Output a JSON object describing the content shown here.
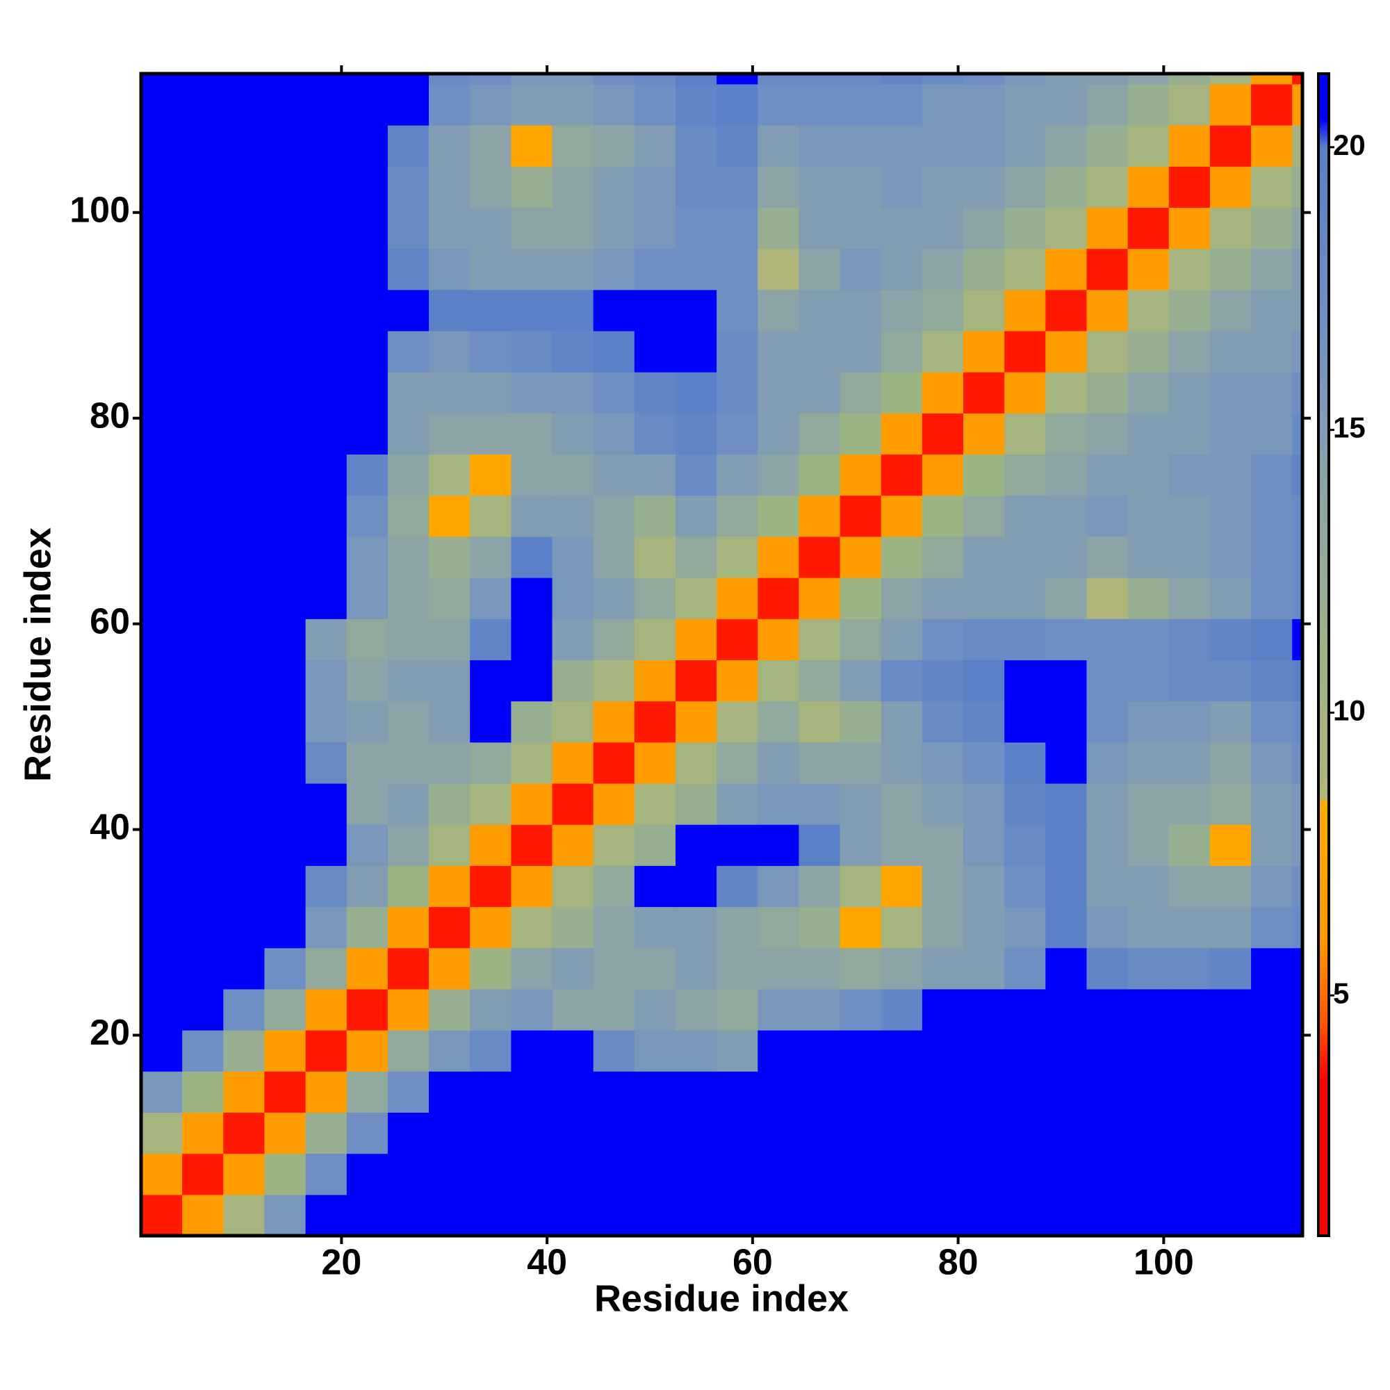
{
  "chart_data": {
    "type": "heatmap",
    "xlabel": "Residue index",
    "ylabel": "Residue index",
    "xlim": [
      0.5,
      113.5
    ],
    "ylim": [
      0.5,
      113.5
    ],
    "xticks": [
      20,
      40,
      60,
      80,
      100
    ],
    "yticks": [
      20,
      40,
      60,
      80,
      100
    ],
    "clim": [
      0.75,
      21.3
    ],
    "cticks": [
      5,
      10,
      15,
      20
    ],
    "colorscale": [
      {
        "value": 0.75,
        "color": "#ff0000"
      },
      {
        "value": 3.5,
        "color": "#ff0000"
      },
      {
        "value": 4.5,
        "color": "#ff5500"
      },
      {
        "value": 6,
        "color": "#ff9900"
      },
      {
        "value": 8.4,
        "color": "#ffaa00"
      },
      {
        "value": 8.5,
        "color": "#b4b478"
      },
      {
        "value": 11,
        "color": "#9cb484"
      },
      {
        "value": 14,
        "color": "#8ca4a8"
      },
      {
        "value": 17,
        "color": "#6f8fc4"
      },
      {
        "value": 20,
        "color": "#5a80c8"
      },
      {
        "value": 20.5,
        "color": "#0000ff"
      },
      {
        "value": 21.3,
        "color": "#0000ff"
      }
    ],
    "x": [
      2.5,
      6.5,
      10.5,
      14.5,
      18.5,
      22.5,
      26.5,
      30.5,
      34.5,
      38.5,
      42.5,
      46.5,
      50.5,
      54.5,
      58.5,
      62.5,
      66.5,
      70.5,
      74.5,
      78.5,
      82.5,
      86.5,
      90.5,
      94.5,
      98.5,
      102.5,
      106.5,
      110.5,
      114.5
    ],
    "y": [
      2.5,
      6.5,
      10.5,
      14.5,
      18.5,
      22.5,
      26.5,
      30.5,
      34.5,
      38.5,
      42.5,
      46.5,
      50.5,
      54.5,
      58.5,
      62.5,
      66.5,
      70.5,
      74.5,
      78.5,
      82.5,
      86.5,
      90.5,
      94.5,
      98.5,
      102.5,
      106.5,
      110.5,
      114.5
    ],
    "z": [
      [
        3.8,
        6.5,
        10,
        16,
        21,
        21,
        21,
        21,
        21,
        21,
        21,
        21,
        21,
        21,
        21,
        21,
        21,
        21,
        21,
        21,
        21,
        21,
        21,
        21,
        21,
        21,
        21,
        21,
        21
      ],
      [
        6.5,
        3.8,
        6.5,
        11,
        17,
        21,
        21,
        21,
        21,
        21,
        21,
        21,
        21,
        21,
        21,
        21,
        21,
        21,
        21,
        21,
        21,
        21,
        21,
        21,
        21,
        21,
        21,
        21,
        21
      ],
      [
        10,
        6.5,
        3.8,
        6.5,
        12,
        17,
        21,
        21,
        21,
        21,
        21,
        21,
        21,
        21,
        21,
        21,
        21,
        21,
        21,
        21,
        21,
        21,
        21,
        21,
        21,
        21,
        21,
        21,
        21
      ],
      [
        16,
        11,
        6.5,
        3.8,
        6.5,
        13,
        17,
        21,
        21,
        21,
        21,
        21,
        21,
        21,
        21,
        21,
        21,
        21,
        21,
        21,
        21,
        21,
        21,
        21,
        21,
        21,
        21,
        21,
        21
      ],
      [
        21,
        17,
        12,
        6.5,
        3.8,
        6.5,
        13,
        16,
        18,
        21,
        21,
        18,
        16,
        16,
        15,
        21,
        21,
        21,
        21,
        21,
        21,
        21,
        21,
        21,
        21,
        21,
        21,
        21,
        21
      ],
      [
        21,
        21,
        17,
        13,
        6.5,
        3.8,
        6.5,
        12,
        15,
        16,
        14,
        14,
        15,
        14,
        13,
        16,
        16,
        17,
        19,
        21,
        21,
        21,
        21,
        21,
        21,
        21,
        21,
        21,
        21
      ],
      [
        21,
        21,
        21,
        17,
        13,
        6.5,
        3.8,
        6.5,
        11,
        14,
        15,
        14,
        14,
        15,
        14,
        14,
        14,
        13,
        14,
        15,
        15,
        17,
        21,
        19,
        18,
        18,
        19,
        21,
        21
      ],
      [
        21,
        21,
        21,
        21,
        16,
        12,
        6.5,
        3.8,
        6.5,
        10,
        12,
        14,
        15,
        15,
        14,
        13,
        12,
        8,
        10,
        14,
        15,
        16,
        20,
        16,
        15,
        15,
        15,
        17,
        18
      ],
      [
        21,
        21,
        21,
        21,
        18,
        15,
        11,
        6.5,
        3.8,
        6.5,
        10,
        13,
        21,
        21,
        19,
        16,
        14,
        10,
        8,
        14,
        15,
        17,
        20,
        15,
        15,
        14,
        14,
        16,
        17
      ],
      [
        21,
        21,
        21,
        21,
        21,
        16,
        14,
        10,
        6.5,
        3.8,
        6.5,
        10,
        12,
        21,
        21,
        21,
        20,
        15,
        14,
        14,
        16,
        18,
        20,
        15,
        14,
        12,
        8,
        15,
        16
      ],
      [
        21,
        21,
        21,
        21,
        21,
        14,
        15,
        12,
        10,
        6.5,
        3.8,
        6.5,
        10,
        12,
        15,
        16,
        16,
        15,
        14,
        15,
        16,
        19,
        20,
        15,
        14,
        14,
        13,
        15,
        16
      ],
      [
        21,
        21,
        21,
        21,
        18,
        14,
        14,
        14,
        13,
        10,
        6.5,
        3.8,
        6.5,
        10,
        13,
        15,
        14,
        14,
        15,
        16,
        17,
        20,
        21,
        16,
        15,
        15,
        14,
        16,
        17
      ],
      [
        21,
        21,
        21,
        21,
        16,
        15,
        14,
        15,
        21,
        12,
        10,
        6.5,
        3.8,
        6.5,
        10,
        13,
        10,
        12,
        15,
        18,
        19,
        21,
        21,
        17,
        16,
        16,
        15,
        17,
        18
      ],
      [
        21,
        21,
        21,
        21,
        16,
        14,
        15,
        15,
        21,
        21,
        12,
        10,
        6.5,
        3.8,
        6.5,
        10,
        13,
        15,
        18,
        19,
        20,
        21,
        21,
        17,
        17,
        18,
        18,
        19,
        20
      ],
      [
        21,
        21,
        21,
        21,
        15,
        13,
        14,
        14,
        19,
        21,
        15,
        13,
        10,
        6.5,
        3.8,
        6.5,
        10,
        13,
        15,
        17,
        18,
        18,
        17,
        17,
        17,
        18,
        19,
        20,
        21
      ],
      [
        21,
        21,
        21,
        21,
        21,
        16,
        14,
        13,
        16,
        21,
        16,
        15,
        13,
        10,
        6.5,
        3.8,
        6.5,
        11,
        14,
        15,
        15,
        15,
        14,
        9,
        12,
        14,
        15,
        17,
        18
      ],
      [
        21,
        21,
        21,
        21,
        21,
        16,
        14,
        12,
        14,
        20,
        16,
        14,
        10,
        13,
        10,
        6.5,
        3.8,
        6.5,
        11,
        13,
        15,
        15,
        15,
        14,
        15,
        15,
        16,
        17,
        18
      ],
      [
        21,
        21,
        21,
        21,
        21,
        17,
        13,
        8,
        10,
        15,
        15,
        14,
        12,
        15,
        13,
        11,
        6.5,
        3.8,
        6.5,
        11,
        13,
        15,
        15,
        16,
        15,
        15,
        16,
        17,
        18
      ],
      [
        21,
        21,
        21,
        21,
        21,
        19,
        14,
        10,
        8,
        14,
        14,
        15,
        15,
        18,
        15,
        14,
        11,
        6.5,
        3.8,
        6.5,
        11,
        13,
        14,
        15,
        15,
        16,
        16,
        17,
        19
      ],
      [
        21,
        21,
        21,
        21,
        21,
        21,
        15,
        14,
        14,
        14,
        15,
        16,
        18,
        19,
        17,
        15,
        13,
        11,
        6.5,
        3.8,
        6.5,
        10,
        13,
        14,
        15,
        15,
        16,
        16,
        18
      ],
      [
        21,
        21,
        21,
        21,
        21,
        21,
        15,
        15,
        15,
        16,
        16,
        17,
        19,
        20,
        18,
        15,
        15,
        13,
        11,
        6.5,
        3.8,
        6.5,
        10,
        12,
        14,
        15,
        16,
        16,
        17
      ],
      [
        21,
        21,
        21,
        21,
        21,
        21,
        17,
        16,
        17,
        18,
        19,
        20,
        21,
        21,
        18,
        15,
        15,
        15,
        13,
        10,
        6.5,
        3.8,
        6.5,
        10,
        12,
        14,
        15,
        15,
        16
      ],
      [
        21,
        21,
        21,
        21,
        21,
        21,
        21,
        20,
        20,
        20,
        20,
        21,
        21,
        21,
        17,
        14,
        15,
        15,
        14,
        13,
        10,
        6.5,
        3.8,
        6.5,
        10,
        12,
        14,
        15,
        15
      ],
      [
        21,
        21,
        21,
        21,
        21,
        21,
        19,
        16,
        15,
        15,
        15,
        16,
        17,
        17,
        17,
        9,
        14,
        16,
        15,
        14,
        12,
        10,
        6.5,
        3.8,
        6.5,
        10,
        12,
        14,
        15
      ],
      [
        21,
        21,
        21,
        21,
        21,
        21,
        18,
        15,
        15,
        14,
        14,
        15,
        16,
        17,
        17,
        12,
        15,
        15,
        15,
        15,
        14,
        12,
        10,
        6.5,
        3.8,
        6.5,
        10,
        12,
        14
      ],
      [
        21,
        21,
        21,
        21,
        21,
        21,
        18,
        15,
        14,
        12,
        14,
        15,
        16,
        18,
        18,
        14,
        15,
        15,
        16,
        15,
        15,
        14,
        12,
        10,
        6.5,
        3.8,
        6.5,
        10,
        12
      ],
      [
        21,
        21,
        21,
        21,
        21,
        21,
        19,
        15,
        14,
        8,
        13,
        14,
        15,
        18,
        19,
        15,
        16,
        16,
        16,
        16,
        16,
        15,
        14,
        12,
        10,
        6.5,
        3.8,
        6.5,
        10
      ],
      [
        21,
        21,
        21,
        21,
        21,
        21,
        21,
        17,
        16,
        15,
        15,
        16,
        17,
        19,
        20,
        17,
        17,
        17,
        17,
        16,
        16,
        15,
        15,
        14,
        12,
        10,
        6.5,
        3.8,
        6.5
      ],
      [
        21,
        21,
        21,
        21,
        21,
        21,
        21,
        18,
        17,
        16,
        16,
        17,
        18,
        20,
        21,
        18,
        18,
        18,
        19,
        18,
        17,
        16,
        15,
        15,
        14,
        12,
        10,
        6.5,
        3.8
      ]
    ]
  }
}
